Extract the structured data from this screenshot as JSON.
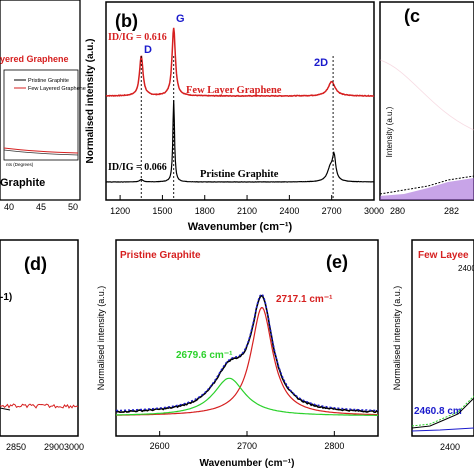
{
  "panels": {
    "a": {
      "legend_title_fragment": "yered Graphene",
      "legend_items": [
        "Pristine Graphite",
        "Few Layered Graphene"
      ],
      "xlabel_fragment": "nts (Degrees)",
      "graphite_label_fragment": "Graphite",
      "xticks": [
        "40",
        "45",
        "50"
      ]
    },
    "b": {
      "tag": "(b)",
      "ratio_few": "ID/IG = 0.616",
      "ratio_pristine": "ID/IG = 0.066",
      "peak_D": "D",
      "peak_G": "G",
      "peak_2D": "2D",
      "label_few": "Few Layer Graphene",
      "label_pristine": "Pristine Graphite"
    },
    "c": {
      "tag": "(c",
      "ylabel": "Intensity (a.u.)",
      "xticks": [
        "280",
        "282"
      ]
    },
    "d": {
      "tag": "(d)",
      "ylabel_fragment": "-1)",
      "xticks": [
        "2850",
        "2900",
        "3000"
      ]
    },
    "e": {
      "tag": "(e)",
      "title": "Pristine Graphite",
      "peak1": "2717.1 cm⁻¹",
      "peak2": "2679.6 cm⁻¹"
    },
    "f": {
      "title_fragment": "Few Layee",
      "ylabel": "Normalised intensity (a.u.)",
      "peak": "2460.8 cm",
      "xticks": [
        "2400"
      ],
      "right_ticks": [
        "2400"
      ]
    }
  },
  "colors": {
    "black": "#000000",
    "red": "#d62020",
    "blue": "#1a1acc",
    "green": "#2bd12b",
    "purple": "#7a2bd6",
    "darkred": "#c0392b"
  },
  "chart_data": [
    {
      "panel": "b",
      "type": "line",
      "xlabel": "Wavenumber (cm⁻¹)",
      "ylabel": "Normalised intensity (a.u.)",
      "xlim": [
        1100,
        3000
      ],
      "xticks": [
        1200,
        1500,
        1800,
        2100,
        2400,
        2700,
        3000
      ],
      "series": [
        {
          "name": "Few Layer Graphene",
          "color": "#d62020",
          "peaks": [
            [
              1350,
              0.5,
              15
            ],
            [
              1580,
              0.85,
              14
            ],
            [
              2700,
              0.18,
              30
            ]
          ],
          "baseline": 0.0,
          "noise": 0.008
        },
        {
          "name": "Pristine Graphite",
          "color": "#000000",
          "peaks": [
            [
              1350,
              0.03,
              15
            ],
            [
              1580,
              1.0,
              7
            ],
            [
              2690,
              0.16,
              25
            ],
            [
              2717,
              0.28,
              14
            ]
          ],
          "baseline": 0.0,
          "noise": 0.003
        }
      ],
      "annotations": [
        {
          "x": 1350,
          "text": "D"
        },
        {
          "x": 1580,
          "text": "G"
        },
        {
          "x": 2710,
          "text": "2D"
        }
      ]
    },
    {
      "panel": "e",
      "type": "line",
      "xlabel": "Wavenumber (cm⁻¹)",
      "ylabel": "Normalised intensity (a.u.)",
      "xlim": [
        2550,
        2850
      ],
      "xticks": [
        2600,
        2700,
        2800
      ],
      "series": [
        {
          "name": "",
          "color": "#000000",
          "role": "measured"
        },
        {
          "name": "",
          "color": "#1a1acc",
          "role": "fit-sum",
          "dotted": true
        },
        {
          "name": "",
          "color": "#d62020",
          "role": "component",
          "center": 2717.1,
          "amp": 0.92,
          "width": 15
        },
        {
          "name": "",
          "color": "#2bd12b",
          "role": "component",
          "center": 2679.6,
          "amp": 0.32,
          "width": 22
        }
      ]
    }
  ]
}
